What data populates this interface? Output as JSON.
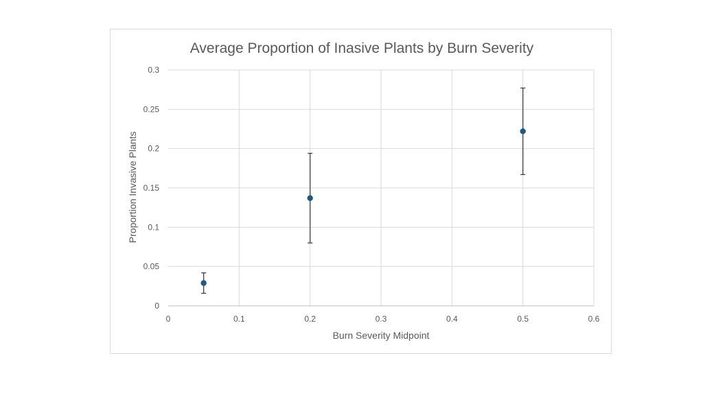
{
  "chart_data": {
    "type": "scatter",
    "title": "Average Proportion of Inasive Plants by Burn Severity",
    "xlabel": "Burn Severity Midpoint",
    "ylabel": "Proportion Invasive Plants",
    "xlim": [
      0,
      0.6
    ],
    "ylim": [
      0,
      0.3
    ],
    "x_ticks": [
      "0",
      "0.1",
      "0.2",
      "0.3",
      "0.4",
      "0.5",
      "0.6"
    ],
    "y_ticks": [
      "0",
      "0.05",
      "0.1",
      "0.15",
      "0.2",
      "0.25",
      "0.3"
    ],
    "grid": true,
    "legend": "none",
    "series": [
      {
        "color": "#1f5a7a",
        "points": [
          {
            "x": 0.05,
            "y": 0.029,
            "err_low": 0.016,
            "err_high": 0.042
          },
          {
            "x": 0.2,
            "y": 0.137,
            "err_low": 0.08,
            "err_high": 0.194
          },
          {
            "x": 0.5,
            "y": 0.222,
            "err_low": 0.167,
            "err_high": 0.277
          }
        ]
      }
    ]
  }
}
